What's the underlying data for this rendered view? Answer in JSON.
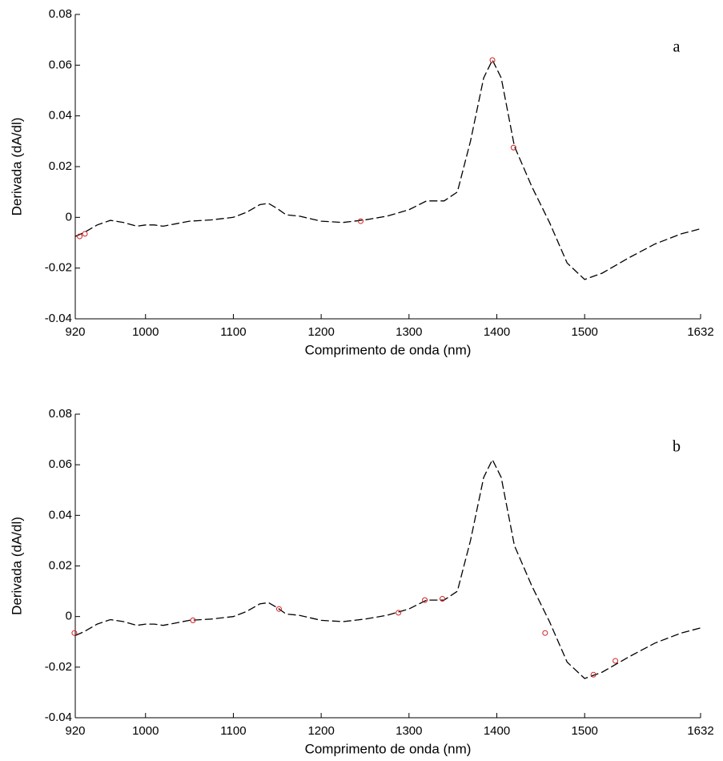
{
  "chart_data": [
    {
      "type": "line",
      "annotation": "a",
      "xlabel": "Comprimento de onda (nm)",
      "ylabel": "Derivada (dA/dl)",
      "xlim": [
        920,
        1632
      ],
      "xticks": [
        920,
        1000,
        1100,
        1200,
        1300,
        1400,
        1500,
        1632
      ],
      "ylim": [
        -0.04,
        0.08
      ],
      "yticks": [
        -0.04,
        -0.02,
        0,
        0.02,
        0.04,
        0.06,
        0.08
      ],
      "curve": {
        "color": "#000000",
        "x": [
          920,
          930,
          945,
          960,
          975,
          990,
          1000,
          1010,
          1020,
          1035,
          1050,
          1075,
          1100,
          1115,
          1130,
          1140,
          1150,
          1160,
          1175,
          1200,
          1225,
          1250,
          1275,
          1300,
          1320,
          1340,
          1355,
          1370,
          1385,
          1395,
          1405,
          1420,
          1440,
          1460,
          1480,
          1500,
          1520,
          1550,
          1580,
          1610,
          1632
        ],
        "values": [
          -0.0075,
          -0.006,
          -0.003,
          -0.0012,
          -0.002,
          -0.0035,
          -0.003,
          -0.003,
          -0.0035,
          -0.0025,
          -0.0015,
          -0.001,
          0,
          0.002,
          0.005,
          0.0055,
          0.0035,
          0.001,
          0.0005,
          -0.0015,
          -0.002,
          -0.001,
          0.0005,
          0.003,
          0.0065,
          0.0065,
          0.01,
          0.03,
          0.055,
          0.062,
          0.055,
          0.028,
          0.012,
          -0.002,
          -0.018,
          -0.0245,
          -0.022,
          -0.016,
          -0.0105,
          -0.0065,
          -0.0045
        ]
      },
      "points": {
        "color": "#d02020",
        "x": [
          925,
          931,
          1245,
          1395,
          1419
        ],
        "values": [
          -0.0075,
          -0.0065,
          -0.0015,
          0.062,
          0.0275
        ]
      }
    },
    {
      "type": "line",
      "annotation": "b",
      "xlabel": "Comprimento de onda (nm)",
      "ylabel": "Derivada (dA/dl)",
      "xlim": [
        920,
        1632
      ],
      "xticks": [
        920,
        1000,
        1100,
        1200,
        1300,
        1400,
        1500,
        1632
      ],
      "ylim": [
        -0.04,
        0.08
      ],
      "yticks": [
        -0.04,
        -0.02,
        0,
        0.02,
        0.04,
        0.06,
        0.08
      ],
      "curve": {
        "color": "#000000",
        "x": [
          920,
          930,
          945,
          960,
          975,
          990,
          1000,
          1010,
          1020,
          1035,
          1050,
          1075,
          1100,
          1115,
          1130,
          1140,
          1150,
          1160,
          1175,
          1200,
          1225,
          1250,
          1275,
          1300,
          1320,
          1340,
          1355,
          1370,
          1385,
          1395,
          1405,
          1420,
          1440,
          1460,
          1480,
          1500,
          1520,
          1550,
          1580,
          1610,
          1632
        ],
        "values": [
          -0.0075,
          -0.006,
          -0.003,
          -0.0012,
          -0.002,
          -0.0035,
          -0.003,
          -0.003,
          -0.0035,
          -0.0025,
          -0.0015,
          -0.001,
          0,
          0.002,
          0.005,
          0.0055,
          0.0035,
          0.001,
          0.0005,
          -0.0015,
          -0.002,
          -0.001,
          0.0005,
          0.003,
          0.0065,
          0.0065,
          0.01,
          0.03,
          0.055,
          0.062,
          0.055,
          0.028,
          0.012,
          -0.002,
          -0.018,
          -0.0245,
          -0.022,
          -0.016,
          -0.0105,
          -0.0065,
          -0.0045
        ]
      },
      "points": {
        "color": "#d02020",
        "x": [
          919,
          1054,
          1152,
          1288,
          1318,
          1338,
          1455,
          1510,
          1535
        ],
        "values": [
          -0.0065,
          -0.0015,
          0.003,
          0.0015,
          0.0065,
          0.007,
          -0.0065,
          -0.023,
          -0.0175
        ]
      }
    }
  ]
}
